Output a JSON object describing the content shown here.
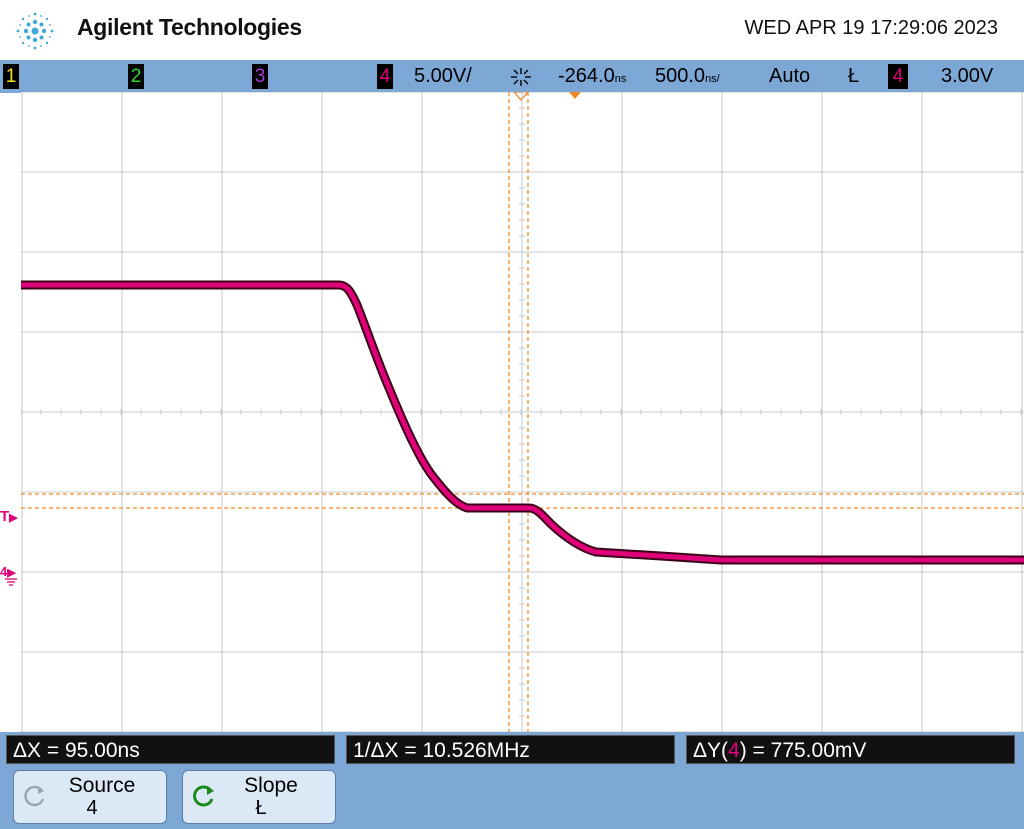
{
  "header": {
    "brand": "Agilent Technologies",
    "datetime": "WED APR 19 17:29:06 2023"
  },
  "statusbar": {
    "ch1": "1",
    "ch2": "2",
    "ch3": "3",
    "ch4": "4",
    "ch4_scale": "5.00V/",
    "time_delay": "-264.0",
    "time_delay_unit": "ns",
    "time_scale": "500.0",
    "time_scale_unit": "ns/",
    "trigger_mode": "Auto",
    "trigger_slope_symbol": "Ł",
    "trigger_source": "4",
    "trigger_level": "3.00V"
  },
  "markers": {
    "trigger_marker": "T",
    "ground_marker": "4"
  },
  "measurements": {
    "dx": "ΔX = 95.00ns",
    "inv_dx": "1/ΔX = 10.526MHz",
    "dy_prefix": "ΔY(",
    "dy_channel": "4",
    "dy_suffix": ") = 775.00mV"
  },
  "softkeys": {
    "source_label": "Source",
    "source_value": "4",
    "slope_label": "Slope",
    "slope_value": "Ł"
  },
  "colors": {
    "ch1": "#f5e11a",
    "ch2": "#2fd62f",
    "ch3": "#a63cd6",
    "ch4": "#e0007a",
    "cursor": "#f08a24",
    "statusbar_bg": "#7da7d4"
  },
  "icons": {
    "logo": "spark-logo-icon",
    "trigger_pos": "trigger-position-icon",
    "source_knob": "rotate-knob-icon",
    "slope_knob": "rotate-knob-green-icon"
  }
}
